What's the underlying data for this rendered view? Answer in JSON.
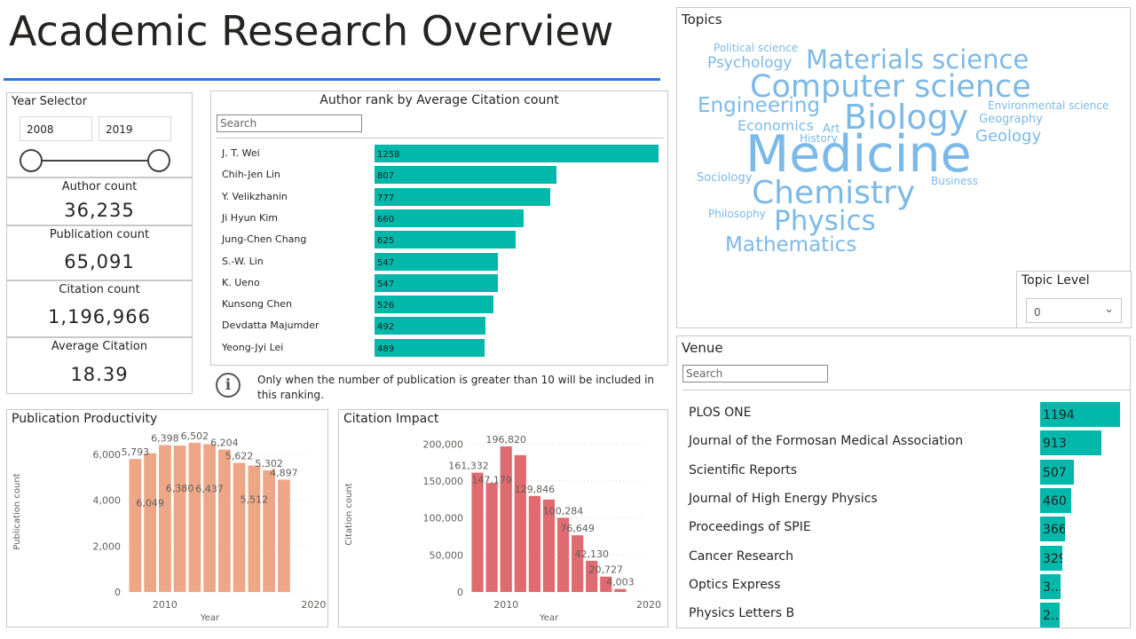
{
  "page": {
    "title": "Academic Research Overview"
  },
  "colors": {
    "accent_line": "#2b7bd6",
    "teal": "#01b8aa",
    "orange": "#eda786",
    "red": "#df6a6f",
    "wordcloud": "#7cb9e8"
  },
  "year_selector": {
    "title": "Year Selector",
    "start": "2008",
    "end": "2019"
  },
  "kpis": [
    {
      "label": "Author count",
      "value": "36,235"
    },
    {
      "label": "Publication count",
      "value": "65,091"
    },
    {
      "label": "Citation count",
      "value": "1,196,966"
    },
    {
      "label": "Average Citation",
      "value": "18.39"
    }
  ],
  "author_rank": {
    "title": "Author rank by Average Citation count",
    "search_placeholder": "Search",
    "max": 1258,
    "items": [
      {
        "name": "J. T. Wei",
        "value": 1258
      },
      {
        "name": "Chih-Jen Lin",
        "value": 807
      },
      {
        "name": "Y. Velikzhanin",
        "value": 777
      },
      {
        "name": "Ji Hyun Kim",
        "value": 660
      },
      {
        "name": "Jung-Chen Chang",
        "value": 625
      },
      {
        "name": "S.-W. Lin",
        "value": 547
      },
      {
        "name": "K. Ueno",
        "value": 547
      },
      {
        "name": "Kunsong Chen",
        "value": 526
      },
      {
        "name": "Devdatta Majumder",
        "value": 492
      },
      {
        "name": "Yeong-Jyi Lei",
        "value": 489
      }
    ],
    "note": "Only when the number of publication is greater than 10 will be included in this ranking."
  },
  "topics": {
    "title": "Topics",
    "words": [
      "Political science",
      "Psychology",
      "Materials science",
      "Computer science",
      "Engineering",
      "Biology",
      "Environmental science",
      "Economics",
      "Geography",
      "Art",
      "History",
      "Geology",
      "Medicine",
      "Sociology",
      "Business",
      "Chemistry",
      "Philosophy",
      "Physics",
      "Mathematics"
    ],
    "level_label": "Topic Level",
    "level_value": "0"
  },
  "venue": {
    "title": "Venue",
    "search_placeholder": "Search",
    "max": 1194,
    "items": [
      {
        "name": "PLOS ONE",
        "value": 1194,
        "label": "1194"
      },
      {
        "name": "Journal of the Formosan Medical Association",
        "value": 913,
        "label": "913"
      },
      {
        "name": "Scientific Reports",
        "value": 507,
        "label": "507"
      },
      {
        "name": "Journal of High Energy Physics",
        "value": 460,
        "label": "460"
      },
      {
        "name": "Proceedings of SPIE",
        "value": 366,
        "label": "366"
      },
      {
        "name": "Cancer Research",
        "value": 329,
        "label": "329"
      },
      {
        "name": "Optics Express",
        "value": 300,
        "label": "3..."
      },
      {
        "name": "Physics Letters B",
        "value": 290,
        "label": "2..."
      }
    ]
  },
  "chart_data": [
    {
      "type": "bar",
      "title": "Publication Productivity",
      "xlabel": "Year",
      "ylabel": "Publication count",
      "ylim": [
        0,
        7000
      ],
      "yticks": [
        0,
        2000,
        4000,
        6000
      ],
      "ytick_labels": [
        "0",
        "2,000",
        "4,000",
        "6,000"
      ],
      "xticks": [
        2010,
        2020
      ],
      "categories": [
        2008,
        2009,
        2010,
        2011,
        2012,
        2013,
        2014,
        2015,
        2016,
        2017,
        2018,
        2019
      ],
      "values": [
        5793,
        6049,
        6398,
        6380,
        6502,
        6437,
        6204,
        5622,
        5512,
        5302,
        4897,
        null
      ],
      "labels": [
        "5,793",
        "6,049",
        "6,398",
        "6,380",
        "6,502",
        "6,437",
        "6,204",
        "5,622",
        "5,512",
        "5,302",
        "4,897",
        ""
      ]
    },
    {
      "type": "bar",
      "title": "Citation Impact",
      "xlabel": "Year",
      "ylabel": "Citation count",
      "ylim": [
        0,
        210000
      ],
      "yticks": [
        0,
        50000,
        100000,
        150000,
        200000
      ],
      "ytick_labels": [
        "0",
        "50,000",
        "100,000",
        "150,000",
        "200,000"
      ],
      "xticks": [
        2010,
        2020
      ],
      "categories": [
        2008,
        2009,
        2010,
        2011,
        2012,
        2013,
        2014,
        2015,
        2016,
        2017,
        2018,
        2019
      ],
      "values": [
        161332,
        147179,
        196820,
        185000,
        129846,
        125000,
        100284,
        76649,
        42130,
        20727,
        4003,
        null
      ],
      "labels": [
        "161,332",
        "147,179",
        "196,820",
        "",
        "129,846",
        "",
        "100,284",
        "76,649",
        "42,130",
        "20,727",
        "4,003",
        ""
      ]
    }
  ]
}
